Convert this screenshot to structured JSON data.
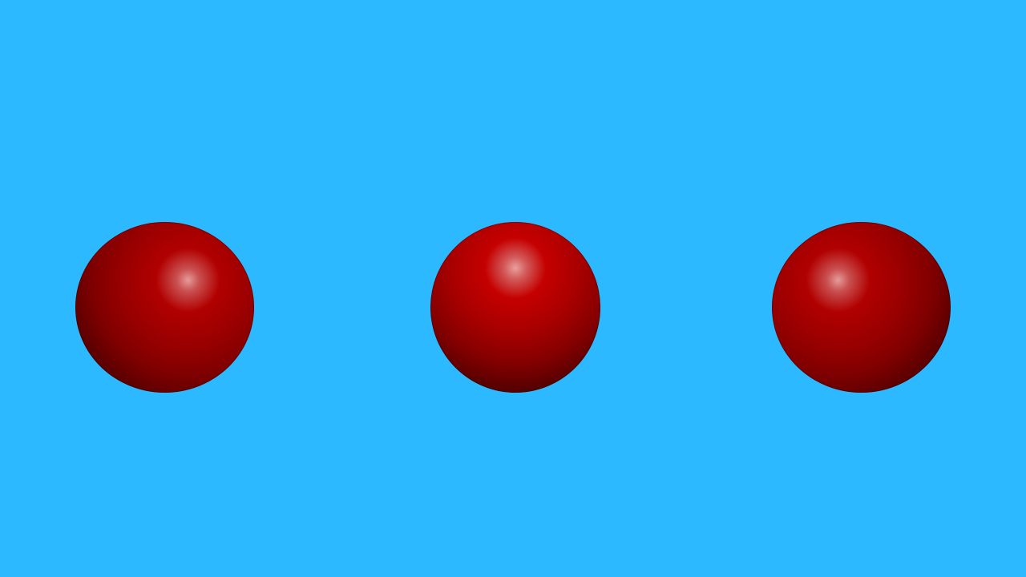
{
  "scene": {
    "background_color": "#2db9ff",
    "sphere_color": "#b10000",
    "sphere_count": 3
  },
  "spheres": [
    {
      "name": "left-sphere",
      "color": "#b10000"
    },
    {
      "name": "center-sphere",
      "color": "#c50000"
    },
    {
      "name": "right-sphere",
      "color": "#b10000"
    }
  ]
}
